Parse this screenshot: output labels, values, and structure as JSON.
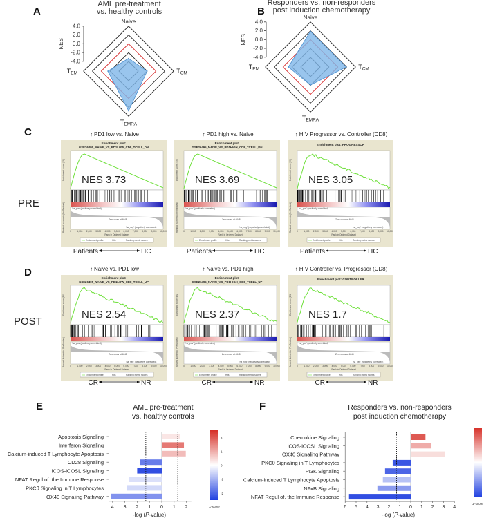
{
  "chart_data": [
    {
      "panel": "A",
      "type": "radar",
      "title": [
        "AML pre-treatment",
        "vs. healthy controls"
      ],
      "ylabel": "NES",
      "ylim": [
        -4.0,
        4.0
      ],
      "ticks": [
        "4.0",
        "2.0",
        "0.0",
        "-2.0",
        "-4.0"
      ],
      "reference_ring": 0.0,
      "axes": [
        "Naive",
        "TCM",
        "TEMRA",
        "TEM"
      ],
      "values": [
        -3.3,
        -2.0,
        2.8,
        -1.5
      ],
      "colors": {
        "fill": "#7fb6e8",
        "reference": "#d62728",
        "grid": "#222222"
      }
    },
    {
      "panel": "B",
      "type": "radar",
      "title": [
        "Responders vs. non-responders",
        "post induction chemotherapy"
      ],
      "ylabel": "NES",
      "ylim": [
        -4.0,
        4.0
      ],
      "ticks": [
        "4.0",
        "2.0",
        "0.0",
        "-2.0",
        "-4.0"
      ],
      "reference_ring": 0.0,
      "axes": [
        "Naive",
        "TCM",
        "TEMRA",
        "TEM"
      ],
      "values": [
        1.9,
        1.9,
        -2.1,
        -1.2
      ],
      "colors": {
        "fill": "#7fb6e8",
        "reference": "#d62728",
        "grid": "#222222"
      }
    },
    {
      "panel": "C",
      "type": "line",
      "row_label": "PRE",
      "comparison": [
        "Patients",
        "HC"
      ],
      "plots": [
        {
          "header": "PD1 low vs. Naive",
          "plot_title": "Enrichment plot:",
          "gene_set": "GSE26495_NAIVE_VS_PD1LOW_CD8_TCELL_DN",
          "nes": "NES 3.73"
        },
        {
          "header": "PD1 high vs. Naive",
          "plot_title": "Enrichment plot:",
          "gene_set": "GSE26495_NAIVE_VS_PD1HIGH_CD8_TCELL_DN",
          "nes": "NES 3.69"
        },
        {
          "header": "HIV Progressor vs. Controller (CD8)",
          "plot_title": "Enrichment plot: PROGRESSOR",
          "gene_set": "",
          "nes": "NES 3.05"
        }
      ]
    },
    {
      "panel": "D",
      "type": "line",
      "row_label": "POST",
      "comparison": [
        "CR",
        "NR"
      ],
      "plots": [
        {
          "header": "Naive vs. PD1 low",
          "plot_title": "Enrichment plot:",
          "gene_set": "GSE26495_NAIVE_VS_PD1LOW_CD8_TCELL_UP",
          "nes": "NES 2.54"
        },
        {
          "header": "Naive vs. PD1 high",
          "plot_title": "Enrichment plot:",
          "gene_set": "GSE26495_NAIVE_VS_PD1HIGH_CD8_TCELL_UP",
          "nes": "NES 2.37"
        },
        {
          "header": "HIV Controller vs. Progressor (CD8)",
          "plot_title": "Enrichment plot: CONTROLLER",
          "gene_set": "",
          "nes": "NES 1.7"
        }
      ]
    },
    {
      "panel": "E",
      "type": "bar",
      "title": [
        "AML pre-treatment",
        "vs. healthy controls"
      ],
      "xlabel": "-log (P-value)",
      "xlim": [
        -4.3,
        2.4
      ],
      "xticks": [
        {
          "v": -4,
          "l": "4"
        },
        {
          "v": -3,
          "l": "3"
        },
        {
          "v": -2,
          "l": "2"
        },
        {
          "v": -1,
          "l": "1"
        },
        {
          "v": 0,
          "l": "0"
        },
        {
          "v": 1,
          "l": "1"
        },
        {
          "v": 2,
          "l": "2"
        }
      ],
      "threshold": 1.3,
      "categories": [
        "Apoptosis Signaling",
        "Interferon Signaling",
        "Calcium-induced T Lymphocyte  Apoptosis",
        "CD28 Signaling",
        "iCOS-iCOSL Signaling",
        "NFAT Regul of. the Immune Response",
        "PKCθ Signaling in T  Lymphocytes",
        "OX40 Signaling Pathway"
      ],
      "values": [
        1.5,
        1.8,
        1.95,
        -1.75,
        -2.0,
        -2.65,
        -2.85,
        -4.1
      ],
      "zscores": [
        0.3,
        1.6,
        0.8,
        -1.7,
        -2.3,
        -0.4,
        -0.5,
        -1.4
      ],
      "colorbar": {
        "label": "Z-score",
        "ticks": [
          "2",
          "1",
          "0",
          "-1",
          "-2"
        ],
        "range": [
          -2.5,
          2.5
        ],
        "high": "#d62f27",
        "mid": "#ffffff",
        "low": "#1f3fe0"
      }
    },
    {
      "panel": "F",
      "type": "bar",
      "title": [
        "Responders vs. non-responders",
        "post induction chemotherapy"
      ],
      "xlabel": "-log (P-value)",
      "xlim": [
        -6,
        4
      ],
      "xticks": [
        {
          "v": -6,
          "l": "6"
        },
        {
          "v": -5,
          "l": "5"
        },
        {
          "v": -4,
          "l": "4"
        },
        {
          "v": -3,
          "l": "3"
        },
        {
          "v": -2,
          "l": "2"
        },
        {
          "v": -1,
          "l": "1"
        },
        {
          "v": 0,
          "l": "0"
        },
        {
          "v": 1,
          "l": "1"
        },
        {
          "v": 2,
          "l": "2"
        },
        {
          "v": 3,
          "l": "3"
        },
        {
          "v": 4,
          "l": "4"
        }
      ],
      "threshold": 1.3,
      "categories": [
        "Chemokine Signaling",
        "iCOS-iCOSL Signaling",
        "OX40 Signaling Pathway",
        "PKCθ  Signaling in T Lymphocytes",
        "PI3K Signaling",
        "Calcium-induced T Lymphocyte  Apoptosis",
        "NFκB Signaling",
        "NFAT Regul of. the Immune Response"
      ],
      "values": [
        1.35,
        1.9,
        3.15,
        -1.65,
        -2.35,
        -2.55,
        -3.05,
        -5.65
      ],
      "zscores": [
        2.0,
        1.0,
        0.4,
        -2.2,
        -2.0,
        -0.8,
        -1.3,
        -2.3
      ],
      "colorbar": {
        "label": "Z-score",
        "ticks": [
          "2",
          "1",
          "0",
          "-1",
          "-2"
        ],
        "range": [
          -2.5,
          2.5
        ],
        "high": "#d62f27",
        "mid": "#ffffff",
        "low": "#1f3fe0"
      }
    }
  ],
  "gsea_text": {
    "es_axis": "Enrichment score (ES)",
    "rank_axis": "Ranked list metric (PreRanked)",
    "x_axis": "Rank in Ordered Dataset",
    "pos": "'na_pos' (positively correlated)",
    "neg": "'na_neg' (negatively correlated)",
    "zero_cross": "Zero cross at 4648",
    "legend": [
      "Enrichment profile",
      "Hits",
      "Ranking metric scores"
    ],
    "xticks": [
      "0",
      "1,000",
      "2,000",
      "3,000",
      "4,000",
      "5,000",
      "6,000",
      "7,000",
      "8,000",
      "9,000",
      "10,000"
    ]
  },
  "panel_labels": [
    "A",
    "B",
    "C",
    "D",
    "E",
    "F"
  ]
}
